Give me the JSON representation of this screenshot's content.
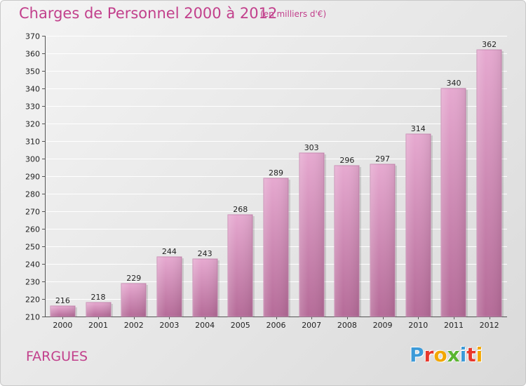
{
  "colors": {
    "title": "#c2408c",
    "bar_top": "#e6a9d0",
    "bar_bottom": "#b56b98",
    "grid": "#ffffff",
    "logo": [
      "#3c9ad8",
      "#e8372c",
      "#f2a700",
      "#5ab530",
      "#3c9ad8",
      "#e8372c",
      "#f2a700"
    ]
  },
  "header": {
    "title": "Charges de Personnel 2000 à 2012",
    "subtitle": "(en milliers d'€)"
  },
  "footer": {
    "place": "FARGUES",
    "logo_letters": [
      "P",
      "r",
      "o",
      "x",
      "i",
      "t",
      "i"
    ]
  },
  "chart_data": {
    "type": "bar",
    "title": "Charges de Personnel 2000 à 2012",
    "subtitle": "(en milliers d'€)",
    "xlabel": "",
    "ylabel": "",
    "categories": [
      "2000",
      "2001",
      "2002",
      "2003",
      "2004",
      "2005",
      "2006",
      "2007",
      "2008",
      "2009",
      "2010",
      "2011",
      "2012"
    ],
    "values": [
      216,
      218,
      229,
      244,
      243,
      268,
      289,
      303,
      296,
      297,
      314,
      340,
      362
    ],
    "ylim": [
      210,
      370
    ],
    "yticks": [
      210,
      220,
      230,
      240,
      250,
      260,
      270,
      280,
      290,
      300,
      310,
      320,
      330,
      340,
      350,
      360,
      370
    ],
    "grid": true,
    "data_labels": true
  }
}
